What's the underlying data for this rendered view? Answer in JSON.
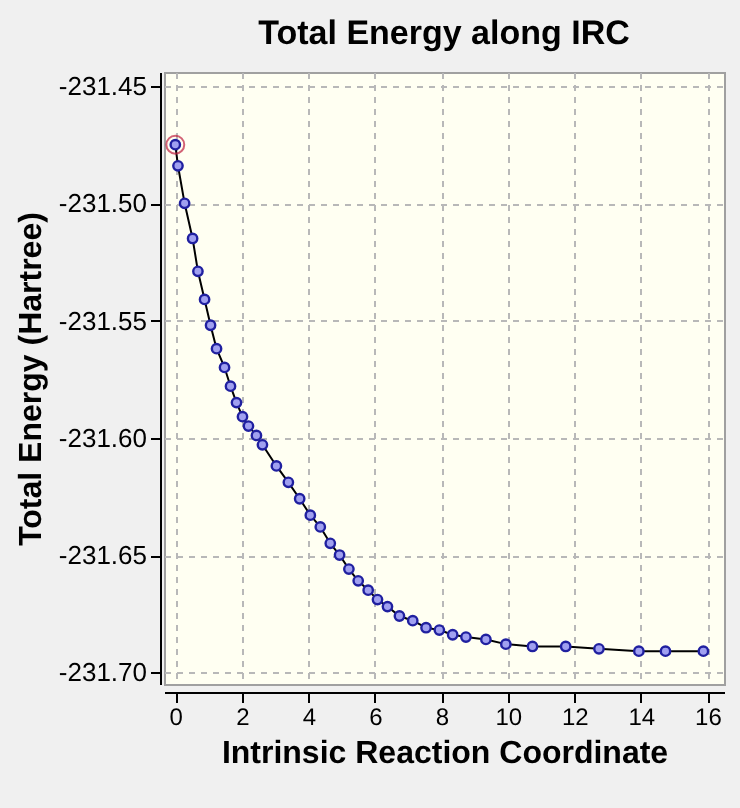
{
  "chart_data": {
    "type": "line",
    "title": "Total Energy along IRC",
    "xlabel": "Intrinsic Reaction Coordinate",
    "ylabel": "Total Energy (Hartree)",
    "xlim": [
      -0.34,
      16.5
    ],
    "xticks": [
      0,
      2,
      4,
      6,
      8,
      10,
      12,
      14,
      16
    ],
    "ylim": [
      -231.705,
      -231.444
    ],
    "yticks": [
      -231.45,
      {
        "value": -231.5,
        "label": "-231.50"
      },
      -231.55,
      {
        "value": -231.6,
        "label": "-231.60"
      },
      -231.65,
      {
        "value": -231.7,
        "label": "-231.70"
      }
    ],
    "grid": true,
    "marker": "circle",
    "line_style": "solid",
    "series": [
      {
        "color": "#2020a0",
        "x": [
          0,
          0.08,
          0.28,
          0.52,
          0.68,
          0.88,
          1.06,
          1.24,
          1.48,
          1.66,
          1.84,
          2.02,
          2.2,
          2.44,
          2.62,
          3.04,
          3.4,
          3.74,
          4.06,
          4.36,
          4.66,
          4.94,
          5.22,
          5.5,
          5.8,
          6.08,
          6.38,
          6.74,
          7.14,
          7.54,
          7.94,
          8.34,
          8.74,
          9.34,
          9.94,
          10.74,
          11.74,
          12.74,
          13.94,
          14.74,
          15.88
        ],
        "values": [
          -231.475,
          -231.484,
          -231.5,
          -231.515,
          -231.529,
          -231.541,
          -231.552,
          -231.562,
          -231.57,
          -231.578,
          -231.585,
          -231.591,
          -231.595,
          -231.599,
          -231.603,
          -231.612,
          -231.619,
          -231.626,
          -231.633,
          -231.638,
          -231.645,
          -231.65,
          -231.656,
          -231.661,
          -231.665,
          -231.669,
          -231.672,
          -231.676,
          -231.678,
          -231.681,
          -231.682,
          -231.684,
          -231.685,
          -231.686,
          -231.688,
          -231.689,
          -231.689,
          -231.69,
          -231.691,
          -231.691,
          -231.691
        ]
      },
      {
        "type": "scatter",
        "color": "#c02040",
        "marker": "circle",
        "x": [
          0
        ],
        "values": [
          -231.475
        ]
      }
    ]
  }
}
